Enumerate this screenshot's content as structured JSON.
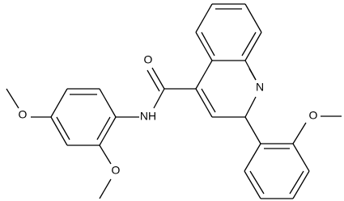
{
  "atom_labels": [
    "O",
    "N",
    "NH",
    "O",
    "O",
    "O"
  ]
}
